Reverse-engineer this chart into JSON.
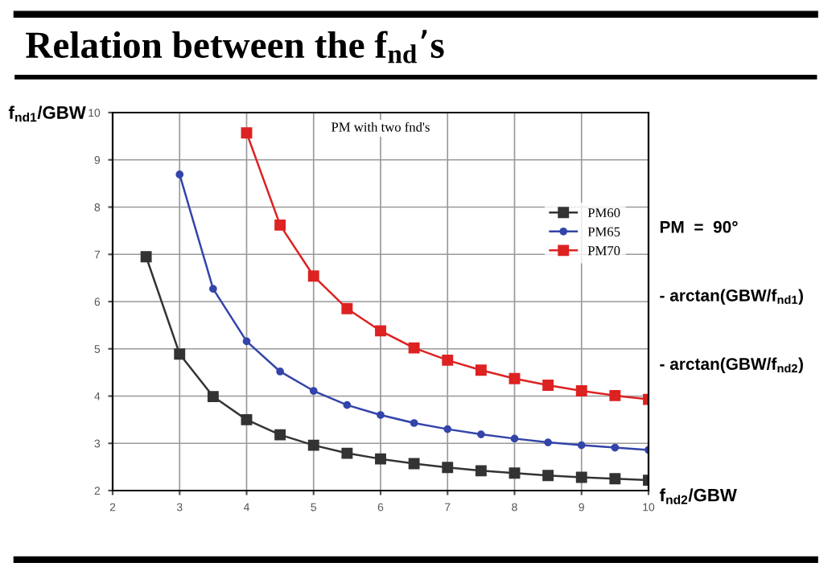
{
  "chart_data": {
    "type": "line",
    "title": "Relation between the f$_{nd}$’s",
    "subtitle": "PM with two fnd's",
    "xlabel": "f$_{nd2}$/GBW",
    "ylabel": "f$_{nd1}$/GBW",
    "annotations": [
      "PM  =  90°",
      "- arctan(GBW/f$_{nd1}$)",
      "- arctan(GBW/f$_{nd2}$)"
    ],
    "x": [
      2.5,
      3,
      3.5,
      4,
      4.5,
      5,
      5.5,
      6,
      6.5,
      7,
      7.5,
      8,
      8.5,
      9,
      9.5,
      10
    ],
    "series": [
      {
        "name": "PM60",
        "color": "#333333",
        "marker": "square",
        "values": [
          6.95,
          4.89,
          3.99,
          3.5,
          3.18,
          2.96,
          2.79,
          2.67,
          2.57,
          2.49,
          2.42,
          2.37,
          2.32,
          2.28,
          2.25,
          2.22
        ]
      },
      {
        "name": "PM65",
        "color": "#3344aa",
        "marker": "circle",
        "values": [
          null,
          8.69,
          6.27,
          5.16,
          4.52,
          4.11,
          3.81,
          3.6,
          3.43,
          3.3,
          3.19,
          3.1,
          3.02,
          2.96,
          2.91,
          2.86
        ]
      },
      {
        "name": "PM70",
        "color": "#dd2222",
        "marker": "square",
        "values": [
          null,
          null,
          null,
          9.57,
          7.62,
          6.54,
          5.85,
          5.38,
          5.02,
          4.76,
          4.55,
          4.37,
          4.23,
          4.11,
          4.01,
          3.93
        ]
      }
    ],
    "xlim": [
      2,
      10
    ],
    "ylim": [
      2,
      10
    ],
    "xticks": [
      2,
      3,
      4,
      5,
      6,
      7,
      8,
      9,
      10
    ],
    "yticks": [
      2,
      3,
      4,
      5,
      6,
      7,
      8,
      9,
      10
    ],
    "grid": true,
    "legend": "top right"
  }
}
